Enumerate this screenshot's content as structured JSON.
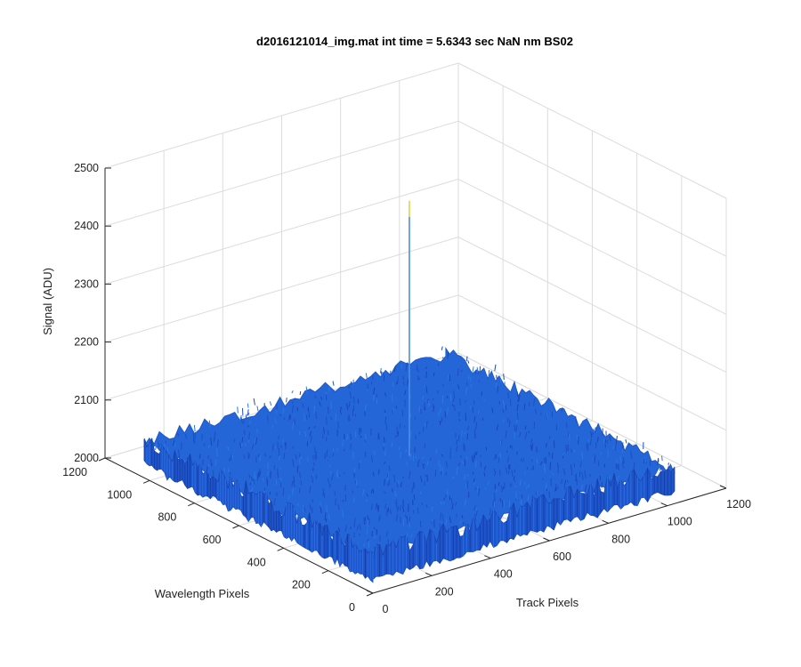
{
  "chart_data": {
    "type": "surface",
    "title": "d2016121014_img.mat int time = 5.6343 sec  NaN nm BS02",
    "xlabel": "Track Pixels",
    "ylabel": "Wavelength Pixels",
    "zlabel": "Signal (ADU)",
    "xlim": [
      0,
      1200
    ],
    "ylim": [
      0,
      1200
    ],
    "zlim": [
      2000,
      2500
    ],
    "xticks": [
      "0",
      "200",
      "400",
      "600",
      "800",
      "1000",
      "1200"
    ],
    "yticks": [
      "0",
      "200",
      "400",
      "600",
      "800",
      "1000",
      "1200"
    ],
    "zticks": [
      "2000",
      "2100",
      "2200",
      "2300",
      "2400",
      "2500"
    ],
    "grid": true,
    "colormap": "parula",
    "surface_extent": {
      "x": [
        0,
        1024
      ],
      "y": [
        0,
        1024
      ]
    },
    "baseline_signal": 2060,
    "noise_band": [
      2040,
      2085
    ],
    "spike": {
      "x": 512,
      "y": 512,
      "z": 2500
    },
    "surface_color": "#1f5fd6"
  }
}
